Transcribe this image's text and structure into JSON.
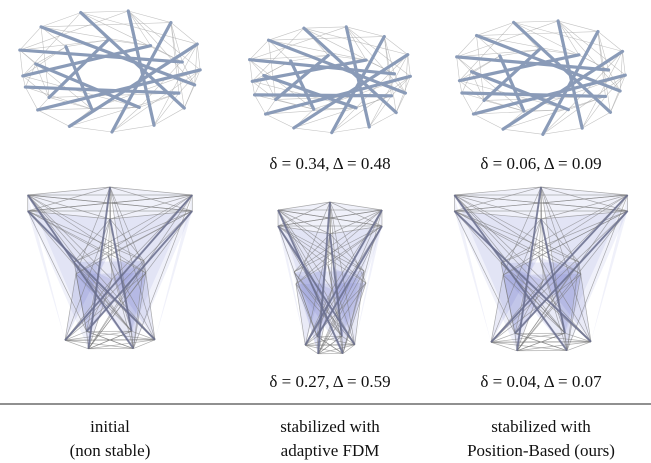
{
  "rows": [
    {
      "metrics": [
        "δ = 0.34, Δ = 0.48",
        "δ = 0.06, Δ = 0.09"
      ]
    },
    {
      "metrics": [
        "δ = 0.27, Δ = 0.59",
        "δ = 0.04, Δ = 0.07"
      ]
    }
  ],
  "columns": [
    {
      "caption": [
        "initial",
        "(non stable)"
      ]
    },
    {
      "caption": [
        "stabilized with",
        "adaptive FDM"
      ]
    },
    {
      "caption": [
        "stabilized with",
        "Position-Based (ours)"
      ]
    }
  ]
}
